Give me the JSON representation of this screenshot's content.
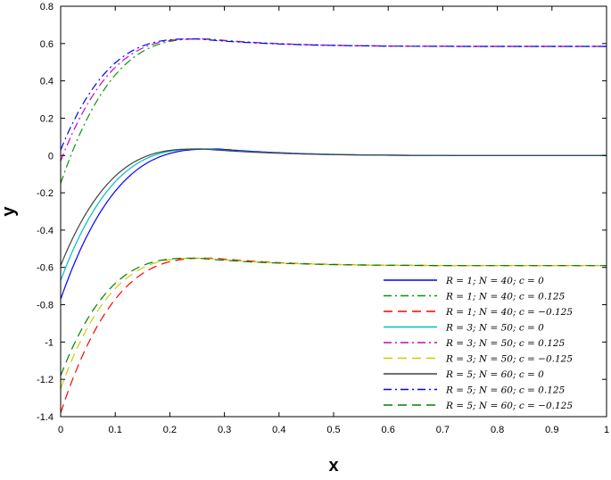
{
  "chart_data": {
    "type": "line",
    "xlabel": "x",
    "ylabel": "y",
    "xlim": [
      0,
      1
    ],
    "ylim": [
      -1.4,
      0.8
    ],
    "xticks": [
      "0",
      "0.1",
      "0.2",
      "0.3",
      "0.4",
      "0.5",
      "0.6",
      "0.7",
      "0.8",
      "0.9",
      "1"
    ],
    "yticks": [
      "0.8",
      "0.6",
      "0.4",
      "0.2",
      "0",
      "-0.2",
      "-0.4",
      "-0.6",
      "-0.8",
      "-1",
      "-1.2",
      "-1.4"
    ],
    "grid": false,
    "legend_position": "bottom-right",
    "series": [
      {
        "name": "R = 1; N = 40; c = 0",
        "color": "#0000ff",
        "dash": "solid",
        "y0": -0.77,
        "peak_x": 0.29,
        "peak_y": 0.035,
        "plateau": 0.0
      },
      {
        "name": "R = 1; N = 40; c = 0.125",
        "color": "#009900",
        "dash": "dashdot",
        "y0": -0.15,
        "peak_x": 0.27,
        "peak_y": 0.625,
        "plateau": 0.585
      },
      {
        "name": "R = 1; N = 40; c = −0.125",
        "color": "#ff0000",
        "dash": "dashed",
        "y0": -1.38,
        "peak_x": 0.28,
        "peak_y": -0.55,
        "plateau": -0.59
      },
      {
        "name": "R = 3; N = 50; c = 0",
        "color": "#00bebe",
        "dash": "solid",
        "y0": -0.67,
        "peak_x": 0.27,
        "peak_y": 0.035,
        "plateau": 0.0
      },
      {
        "name": "R = 3; N = 50; c = 0.125",
        "color": "#cc00cc",
        "dash": "dashdot",
        "y0": -0.03,
        "peak_x": 0.26,
        "peak_y": 0.625,
        "plateau": 0.585
      },
      {
        "name": "R = 3; N = 50; c = −0.125",
        "color": "#cccc00",
        "dash": "dashed",
        "y0": -1.25,
        "peak_x": 0.26,
        "peak_y": -0.55,
        "plateau": -0.59
      },
      {
        "name": "R = 5; N = 60; c = 0",
        "color": "#404040",
        "dash": "solid",
        "y0": -0.59,
        "peak_x": 0.26,
        "peak_y": 0.035,
        "plateau": 0.0
      },
      {
        "name": "R = 5; N = 60; c = 0.125",
        "color": "#0000ff",
        "dash": "dashdot",
        "y0": 0.03,
        "peak_x": 0.25,
        "peak_y": 0.625,
        "plateau": 0.585
      },
      {
        "name": "R = 5; N = 60; c = −0.125",
        "color": "#008000",
        "dash": "dashed",
        "y0": -1.18,
        "peak_x": 0.25,
        "peak_y": -0.55,
        "plateau": -0.59
      }
    ]
  }
}
